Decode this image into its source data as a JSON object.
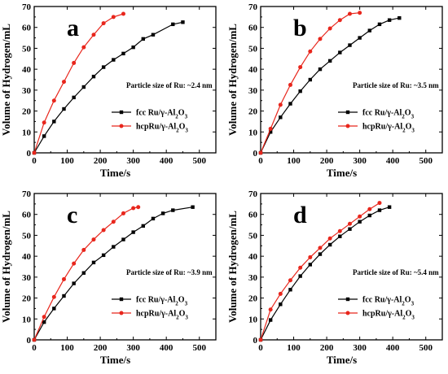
{
  "chart_data": [
    {
      "type": "line",
      "panel_label": "a",
      "xlabel": "Time/s",
      "ylabel": "Volume of Hydrogen/mL",
      "xlim": [
        0,
        550
      ],
      "ylim": [
        0,
        70
      ],
      "xticks": [
        0,
        100,
        200,
        300,
        400,
        500
      ],
      "yticks": [
        0,
        10,
        20,
        30,
        40,
        50,
        60,
        70
      ],
      "annotation": "Particle size of Ru: ~2.4 nm",
      "legend_position": "lower-right",
      "series": [
        {
          "name": "fcc Ru/γ-Al2O3",
          "legend_prefix": "fcc Ru/γ-Al",
          "sub1": "2",
          "mid": "O",
          "sub2": "3",
          "color": "#000000",
          "marker": "square",
          "x": [
            0,
            30,
            60,
            90,
            120,
            150,
            180,
            210,
            240,
            270,
            300,
            330,
            360,
            420,
            450
          ],
          "y": [
            0,
            8,
            15,
            21,
            26.5,
            31.5,
            36.5,
            41,
            44.5,
            47.5,
            50.5,
            54.5,
            56.5,
            61.5,
            62.5
          ]
        },
        {
          "name": "hcpRu/γ-Al2O3",
          "legend_prefix": "hcpRu/γ-Al",
          "sub1": "2",
          "mid": "O",
          "sub2": "3",
          "color": "#e8261c",
          "marker": "circle",
          "x": [
            0,
            30,
            60,
            90,
            120,
            150,
            180,
            210,
            240,
            270
          ],
          "y": [
            0,
            14.5,
            25,
            34,
            43,
            50.5,
            56.5,
            62,
            65,
            66.5
          ]
        }
      ]
    },
    {
      "type": "line",
      "panel_label": "b",
      "xlabel": "Time/s",
      "ylabel": "Volume of Hydrogen/mL",
      "xlim": [
        0,
        550
      ],
      "ylim": [
        0,
        70
      ],
      "xticks": [
        0,
        100,
        200,
        300,
        400,
        500
      ],
      "yticks": [
        0,
        10,
        20,
        30,
        40,
        50,
        60,
        70
      ],
      "annotation": "Particle size of Ru: ~3.5 nm",
      "legend_position": "lower-right",
      "series": [
        {
          "name": "fcc Ru/γ-Al2O3",
          "legend_prefix": "fcc Ru/γ-Al",
          "sub1": "2",
          "mid": "O",
          "sub2": "3",
          "color": "#000000",
          "marker": "square",
          "x": [
            0,
            30,
            60,
            90,
            120,
            150,
            180,
            210,
            240,
            270,
            300,
            330,
            360,
            390,
            420
          ],
          "y": [
            0,
            10,
            17,
            23.5,
            29.5,
            35,
            40,
            44,
            48,
            51.5,
            55,
            58.5,
            61.5,
            63.5,
            64.5
          ]
        },
        {
          "name": "hcpRu/γ-Al2O3",
          "legend_prefix": "hcpRu/γ-Al",
          "sub1": "2",
          "mid": "O",
          "sub2": "3",
          "color": "#e8261c",
          "marker": "circle",
          "x": [
            0,
            30,
            60,
            90,
            120,
            150,
            180,
            210,
            240,
            270,
            300
          ],
          "y": [
            0,
            11.5,
            23,
            32.5,
            41,
            48.5,
            54.5,
            59.5,
            63.5,
            66.5,
            67
          ]
        }
      ]
    },
    {
      "type": "line",
      "panel_label": "c",
      "xlabel": "Time/s",
      "ylabel": "Volume of Hydrogen/mL",
      "xlim": [
        0,
        550
      ],
      "ylim": [
        0,
        70
      ],
      "xticks": [
        0,
        100,
        200,
        300,
        400,
        500
      ],
      "yticks": [
        0,
        10,
        20,
        30,
        40,
        50,
        60,
        70
      ],
      "annotation": "Particle size of Ru: ~3.9 nm",
      "legend_position": "lower-right",
      "series": [
        {
          "name": "fcc Ru/γ-Al2O3",
          "legend_prefix": "fcc Ru/γ-Al",
          "sub1": "2",
          "mid": "O",
          "sub2": "3",
          "color": "#000000",
          "marker": "square",
          "x": [
            0,
            30,
            60,
            90,
            120,
            150,
            180,
            210,
            240,
            270,
            300,
            330,
            360,
            390,
            420,
            480
          ],
          "y": [
            0,
            8.5,
            15,
            21,
            27,
            32,
            37,
            40.5,
            44.5,
            48,
            51.5,
            54.5,
            58,
            60.5,
            62,
            63.5
          ]
        },
        {
          "name": "hcpRu/γ-Al2O3",
          "legend_prefix": "hcpRu/γ-Al",
          "sub1": "2",
          "mid": "O",
          "sub2": "3",
          "color": "#e8261c",
          "marker": "circle",
          "x": [
            0,
            30,
            60,
            90,
            120,
            150,
            180,
            210,
            240,
            270,
            300,
            315
          ],
          "y": [
            0,
            11,
            20.5,
            29,
            36.5,
            43,
            48,
            52.5,
            56.5,
            60.5,
            63,
            63.5
          ]
        }
      ]
    },
    {
      "type": "line",
      "panel_label": "d",
      "xlabel": "Time/s",
      "ylabel": "Volume of Hydrogen/mL",
      "xlim": [
        0,
        550
      ],
      "ylim": [
        0,
        70
      ],
      "xticks": [
        0,
        100,
        200,
        300,
        400,
        500
      ],
      "yticks": [
        0,
        10,
        20,
        30,
        40,
        50,
        60,
        70
      ],
      "annotation": "Particle size of Ru: ~5.4 nm",
      "legend_position": "lower-right",
      "series": [
        {
          "name": "fcc Ru/γ-Al2O3",
          "legend_prefix": "fcc Ru/γ-Al",
          "sub1": "2",
          "mid": "O",
          "sub2": "3",
          "color": "#000000",
          "marker": "square",
          "x": [
            0,
            30,
            60,
            90,
            120,
            150,
            180,
            210,
            240,
            270,
            300,
            330,
            360,
            390
          ],
          "y": [
            0,
            9.5,
            17,
            24,
            30.5,
            36,
            41,
            45.5,
            49.5,
            53,
            56.5,
            59.5,
            62,
            63.5
          ]
        },
        {
          "name": "hcpRu/γ-Al2O3",
          "legend_prefix": "hcpRu/γ-Al",
          "sub1": "2",
          "mid": "O",
          "sub2": "3",
          "color": "#e8261c",
          "marker": "circle",
          "x": [
            0,
            30,
            60,
            90,
            120,
            150,
            180,
            210,
            240,
            270,
            300,
            330,
            360
          ],
          "y": [
            0,
            14.5,
            22,
            28.5,
            34.5,
            39.5,
            44,
            48.5,
            52,
            55.5,
            59,
            62.5,
            65.5
          ]
        }
      ]
    }
  ]
}
